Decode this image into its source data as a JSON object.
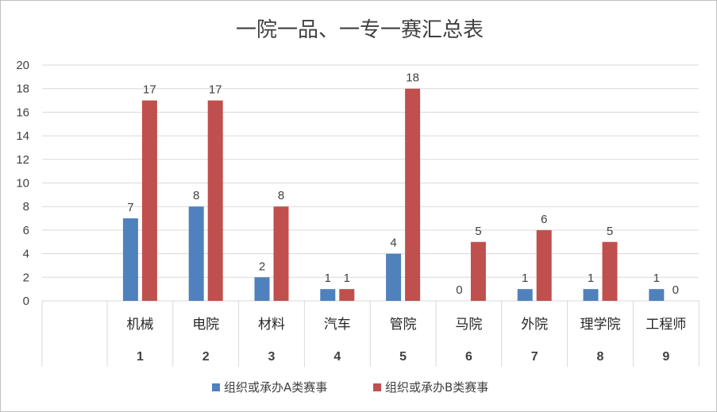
{
  "chart_data": {
    "type": "bar",
    "title": "一院一品、一专一赛汇总表",
    "categories": [
      "机械",
      "电院",
      "材料",
      "汽车",
      "管院",
      "马院",
      "外院",
      "理学院",
      "工程师"
    ],
    "category_numbers": [
      "1",
      "2",
      "3",
      "4",
      "5",
      "6",
      "7",
      "8",
      "9"
    ],
    "series": [
      {
        "name": "组织或承办A类赛事",
        "color": "#4f81bd",
        "values": [
          7,
          8,
          2,
          1,
          4,
          0,
          1,
          1,
          1
        ]
      },
      {
        "name": "组织或承办B类赛事",
        "color": "#c0504d",
        "values": [
          17,
          17,
          8,
          1,
          18,
          5,
          6,
          5,
          0
        ]
      }
    ],
    "ylim": [
      0,
      20
    ],
    "yticks": [
      0,
      2,
      4,
      6,
      8,
      10,
      12,
      14,
      16,
      18,
      20
    ],
    "grid": true,
    "legend": "bottom"
  }
}
